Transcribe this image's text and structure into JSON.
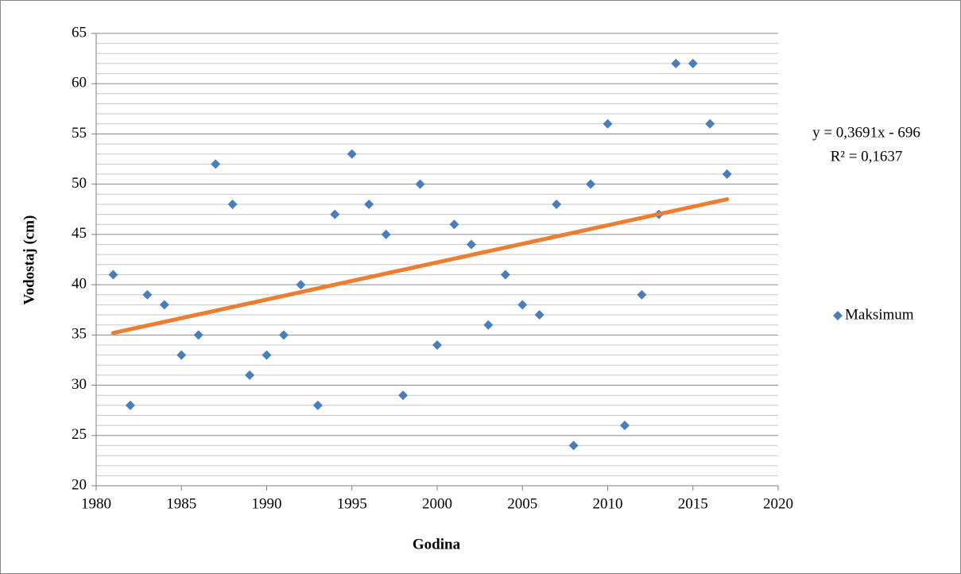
{
  "chart_data": {
    "type": "scatter",
    "x_label": "Godina",
    "y_label": "Vodostaj (cm)",
    "series": [
      {
        "name": "Maksimum",
        "color": "#4a7ebb",
        "x": [
          1981,
          1982,
          1983,
          1984,
          1985,
          1986,
          1987,
          1988,
          1989,
          1990,
          1991,
          1992,
          1993,
          1994,
          1995,
          1996,
          1997,
          1998,
          1999,
          2000,
          2001,
          2002,
          2003,
          2004,
          2005,
          2006,
          2007,
          2008,
          2009,
          2010,
          2011,
          2012,
          2013,
          2014,
          2015,
          2016,
          2017
        ],
        "values": [
          41,
          28,
          39,
          38,
          33,
          35,
          52,
          48,
          31,
          33,
          35,
          40,
          28,
          47,
          53,
          48,
          45,
          29,
          50,
          34,
          46,
          44,
          36,
          41,
          38,
          37,
          48,
          24,
          50,
          56,
          26,
          39,
          47,
          62,
          62,
          56,
          51
        ]
      }
    ],
    "trendline": {
      "color": "#ed7d31",
      "x": [
        1981,
        2017
      ],
      "values": [
        35.2,
        48.5
      ]
    },
    "annotations": [
      "y = 0,3691x - 696",
      "R² = 0,1637"
    ],
    "xlim": [
      1980,
      2020
    ],
    "xticks": [
      1980,
      1985,
      1990,
      1995,
      2000,
      2005,
      2010,
      2015,
      2020
    ],
    "ylim": [
      20,
      65
    ],
    "yticks": [
      20,
      25,
      30,
      35,
      40,
      45,
      50,
      55,
      60,
      65
    ],
    "yminorticks": [
      21,
      22,
      23,
      24,
      26,
      27,
      28,
      29,
      31,
      32,
      33,
      34,
      36,
      37,
      38,
      39,
      41,
      42,
      43,
      44,
      46,
      47,
      48,
      49,
      51,
      52,
      53,
      54,
      56,
      57,
      58,
      59,
      61,
      62,
      63,
      64
    ],
    "grid": true,
    "legend": "right"
  }
}
